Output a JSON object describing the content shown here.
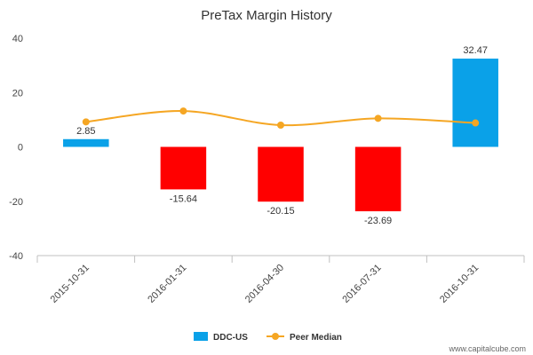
{
  "chart_data": {
    "type": "bar",
    "title": "PreTax Margin History",
    "xlabel": "",
    "ylabel": "",
    "categories": [
      "2015-10-31",
      "2016-01-31",
      "2016-04-30",
      "2016-07-31",
      "2016-10-31"
    ],
    "ylim": [
      -40,
      40
    ],
    "yticks": [
      -40,
      -20,
      0,
      20,
      40
    ],
    "grid": false,
    "legend_position": "bottom",
    "series": [
      {
        "name": "DDC-US",
        "kind": "bar",
        "values": [
          2.85,
          -15.64,
          -20.15,
          -23.69,
          32.47
        ],
        "labels": [
          "2.85",
          "-15.64",
          "-20.15",
          "-23.69",
          "32.47"
        ],
        "positive_color": "#0aa1e8",
        "negative_color": "#ff0000"
      },
      {
        "name": "Peer Median",
        "kind": "line",
        "values": [
          9.2,
          13.2,
          8.0,
          10.5,
          8.8
        ],
        "color": "#f5a623"
      }
    ]
  },
  "watermark": "www.capitalcube.com"
}
